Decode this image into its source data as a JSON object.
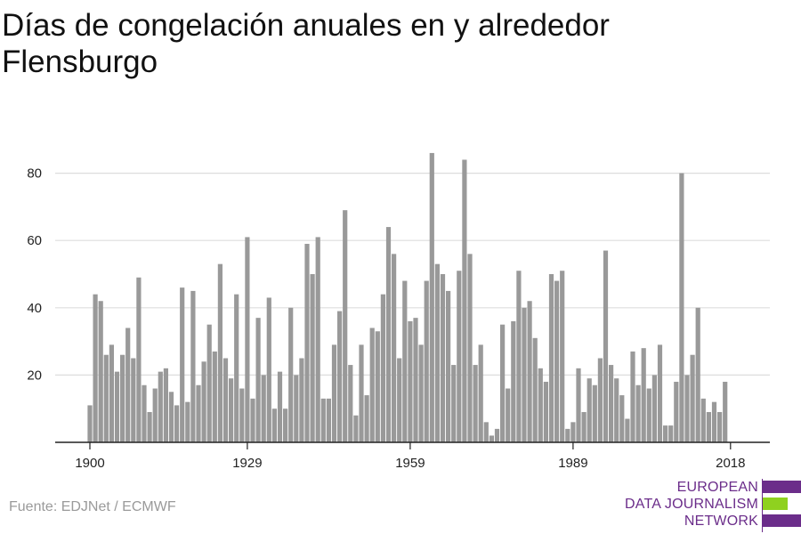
{
  "title": "Días de congelación anuales en y alrededor Flensburgo",
  "source": "Fuente: EDJNet / ECMWF",
  "logo": {
    "lines": [
      "EUROPEAN",
      "DATA JOURNALISM",
      "NETWORK"
    ],
    "colors": {
      "text": "#6b2d8a",
      "purple": "#6b2d8a",
      "green": "#8fd11f"
    }
  },
  "colors": {
    "bar": "#999999",
    "grid": "#dddddd",
    "axis": "#222222",
    "title": "#111111",
    "source": "#9a9a9a"
  },
  "chart_data": {
    "type": "bar",
    "title": "Días de congelación anuales en y alrededor Flensburgo",
    "xlabel": "",
    "ylabel": "",
    "x_ticks": [
      1900,
      1929,
      1959,
      1989,
      2018
    ],
    "y_ticks": [
      20,
      40,
      60,
      80
    ],
    "ylim": [
      0,
      90
    ],
    "grid": true,
    "categories": [
      1900,
      1901,
      1902,
      1903,
      1904,
      1905,
      1906,
      1907,
      1908,
      1909,
      1910,
      1911,
      1912,
      1913,
      1914,
      1915,
      1916,
      1917,
      1918,
      1919,
      1920,
      1921,
      1922,
      1923,
      1924,
      1925,
      1926,
      1927,
      1928,
      1929,
      1930,
      1931,
      1932,
      1933,
      1934,
      1935,
      1936,
      1937,
      1938,
      1939,
      1940,
      1941,
      1942,
      1943,
      1944,
      1945,
      1946,
      1947,
      1948,
      1949,
      1950,
      1951,
      1952,
      1953,
      1954,
      1955,
      1956,
      1957,
      1958,
      1959,
      1960,
      1961,
      1962,
      1963,
      1964,
      1965,
      1966,
      1967,
      1968,
      1969,
      1970,
      1971,
      1972,
      1973,
      1974,
      1975,
      1976,
      1977,
      1978,
      1979,
      1980,
      1981,
      1982,
      1983,
      1984,
      1985,
      1986,
      1987,
      1988,
      1989,
      1990,
      1991,
      1992,
      1993,
      1994,
      1995,
      1996,
      1997,
      1998,
      1999,
      2000,
      2001,
      2002,
      2003,
      2004,
      2005,
      2006,
      2007,
      2008,
      2009,
      2010,
      2011,
      2012,
      2013,
      2014,
      2015,
      2016,
      2017,
      2018
    ],
    "values": [
      11,
      44,
      42,
      26,
      29,
      21,
      26,
      34,
      25,
      49,
      17,
      9,
      16,
      21,
      22,
      15,
      11,
      46,
      12,
      45,
      17,
      24,
      35,
      27,
      53,
      25,
      19,
      44,
      16,
      61,
      13,
      37,
      20,
      43,
      10,
      21,
      10,
      40,
      20,
      25,
      59,
      50,
      61,
      13,
      13,
      29,
      39,
      69,
      23,
      8,
      29,
      14,
      34,
      33,
      44,
      64,
      56,
      25,
      48,
      36,
      37,
      29,
      48,
      86,
      53,
      50,
      45,
      23,
      51,
      84,
      56,
      23,
      29,
      6,
      2,
      4,
      35,
      16,
      36,
      51,
      40,
      42,
      31,
      22,
      18,
      50,
      48,
      51,
      4,
      6,
      22,
      9,
      19,
      17,
      25,
      57,
      23,
      19,
      14,
      7,
      27,
      17,
      28,
      16,
      20,
      29,
      5,
      5,
      18,
      80,
      20,
      26,
      40,
      13,
      9,
      12,
      9,
      18,
      null
    ]
  }
}
